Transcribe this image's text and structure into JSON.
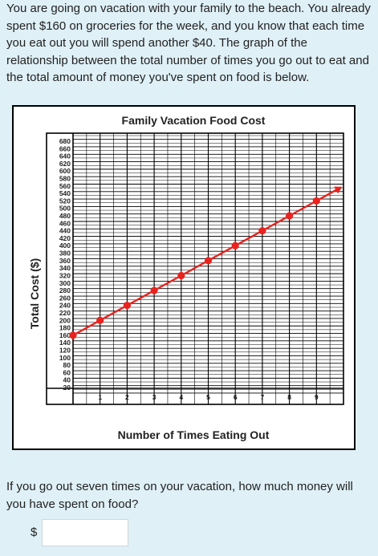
{
  "problem": {
    "intro": "You are going on vacation with your family to the beach. You already spent $160 on groceries for the week, and you know that each time you eat out you will spend another $40. The graph of the relationship between the total number of times you go out to eat and the total amount of money you've spent on food is below.",
    "question": "If you go out seven times on your vacation, how much money will you have spent on food?",
    "answer_prefix": "$",
    "answer_value": ""
  },
  "chart_data": {
    "type": "line",
    "title": "Family Vacation Food Cost",
    "xlabel": "Number of Times Eating Out",
    "ylabel": "Total Cost ($)",
    "x_ticks": [
      "1",
      "2",
      "3",
      "4",
      "5",
      "6",
      "7",
      "8",
      "9"
    ],
    "y_ticks": [
      "20",
      "40",
      "60",
      "80",
      "100",
      "120",
      "140",
      "160",
      "180",
      "200",
      "220",
      "240",
      "260",
      "280",
      "300",
      "320",
      "340",
      "360",
      "380",
      "400",
      "420",
      "440",
      "460",
      "480",
      "500",
      "520",
      "540",
      "560",
      "580",
      "600",
      "620",
      "640",
      "660",
      "680"
    ],
    "xlim": [
      0,
      10
    ],
    "ylim": [
      0,
      700
    ],
    "grid": true,
    "series": [
      {
        "x": [
          0,
          1,
          2,
          3,
          4,
          5,
          6,
          7,
          8,
          9
        ],
        "y": [
          160,
          200,
          240,
          280,
          320,
          360,
          400,
          440,
          480,
          520
        ],
        "color": "#e8231f",
        "marker": "circle",
        "arrow_end": true
      }
    ],
    "colors": {
      "line": "#e8231f",
      "grid": "#000000"
    }
  }
}
